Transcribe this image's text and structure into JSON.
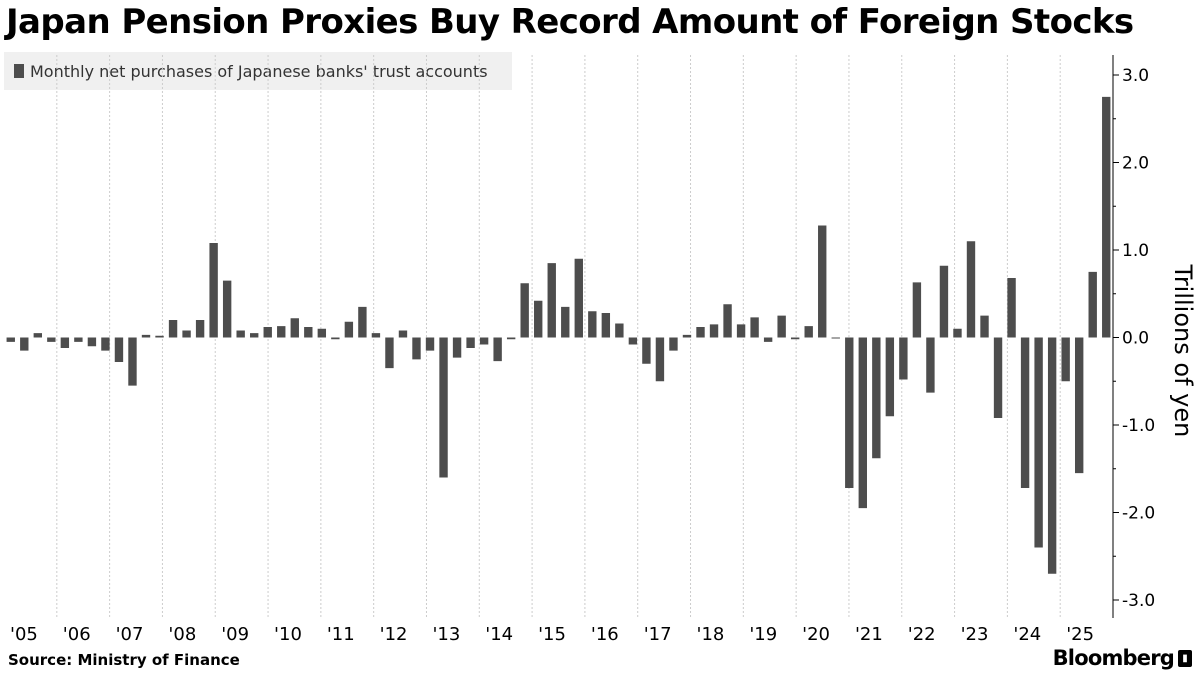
{
  "title": "Japan Pension Proxies Buy Record Amount of Foreign Stocks",
  "source": "Source:  Ministry of Finance",
  "brand": "Bloomberg",
  "colors": {
    "bar": "#4d4d4d",
    "grid": "#cccccc",
    "axis": "#000000"
  },
  "chart_data": {
    "type": "bar",
    "legend": [
      "Monthly net purchases of Japanese banks' trust accounts"
    ],
    "legend_position": "top-left",
    "ylabel": "Trillions of yen",
    "ylim": [
      -3.0,
      3.0
    ],
    "yticks": [
      3.0,
      2.0,
      1.0,
      0.0,
      -1.0,
      -2.0,
      -3.0
    ],
    "ytick_labels": [
      "3.0",
      "2.0",
      "1.0",
      "0.0",
      "-1.0",
      "-2.0",
      "-3.0"
    ],
    "y_axis_position": "right",
    "grid": "vertical dotted at year boundaries",
    "xticks": [
      "'05",
      "'06",
      "'07",
      "'08",
      "'09",
      "'10",
      "'11",
      "'12",
      "'13",
      "'14",
      "'15",
      "'16",
      "'17",
      "'18",
      "'19",
      "'20",
      "'21",
      "'22",
      "'23",
      "'24",
      "'25"
    ],
    "x_start": "2005",
    "x_end": "2025",
    "series": [
      {
        "values": [
          -0.05,
          -0.15,
          0.05,
          -0.05,
          -0.12,
          -0.05,
          -0.1,
          -0.15,
          -0.28,
          -0.55,
          0.03,
          0.02,
          0.2,
          0.08,
          0.2,
          1.08,
          0.65,
          0.08,
          0.05,
          0.12,
          0.13,
          0.22,
          0.12,
          0.1,
          -0.02,
          0.18,
          0.35,
          0.05,
          -0.35,
          0.08,
          -0.25,
          -0.15,
          -1.6,
          -0.23,
          -0.12,
          -0.08,
          -0.27,
          -0.02,
          0.62,
          0.42,
          0.85,
          0.35,
          0.9,
          0.3,
          0.28,
          0.16,
          -0.08,
          -0.3,
          -0.5,
          -0.15,
          0.03,
          0.12,
          0.15,
          0.38,
          0.15,
          0.23,
          -0.05,
          0.25,
          -0.02,
          0.13,
          1.28,
          0.0,
          -1.72,
          -1.95,
          -1.38,
          -0.9,
          -0.48,
          0.63,
          -0.63,
          0.82,
          0.1,
          1.1,
          0.25,
          -0.92,
          0.68,
          -1.72,
          -2.4,
          -2.7,
          -0.5,
          -1.55,
          0.75,
          2.75
        ]
      }
    ]
  }
}
